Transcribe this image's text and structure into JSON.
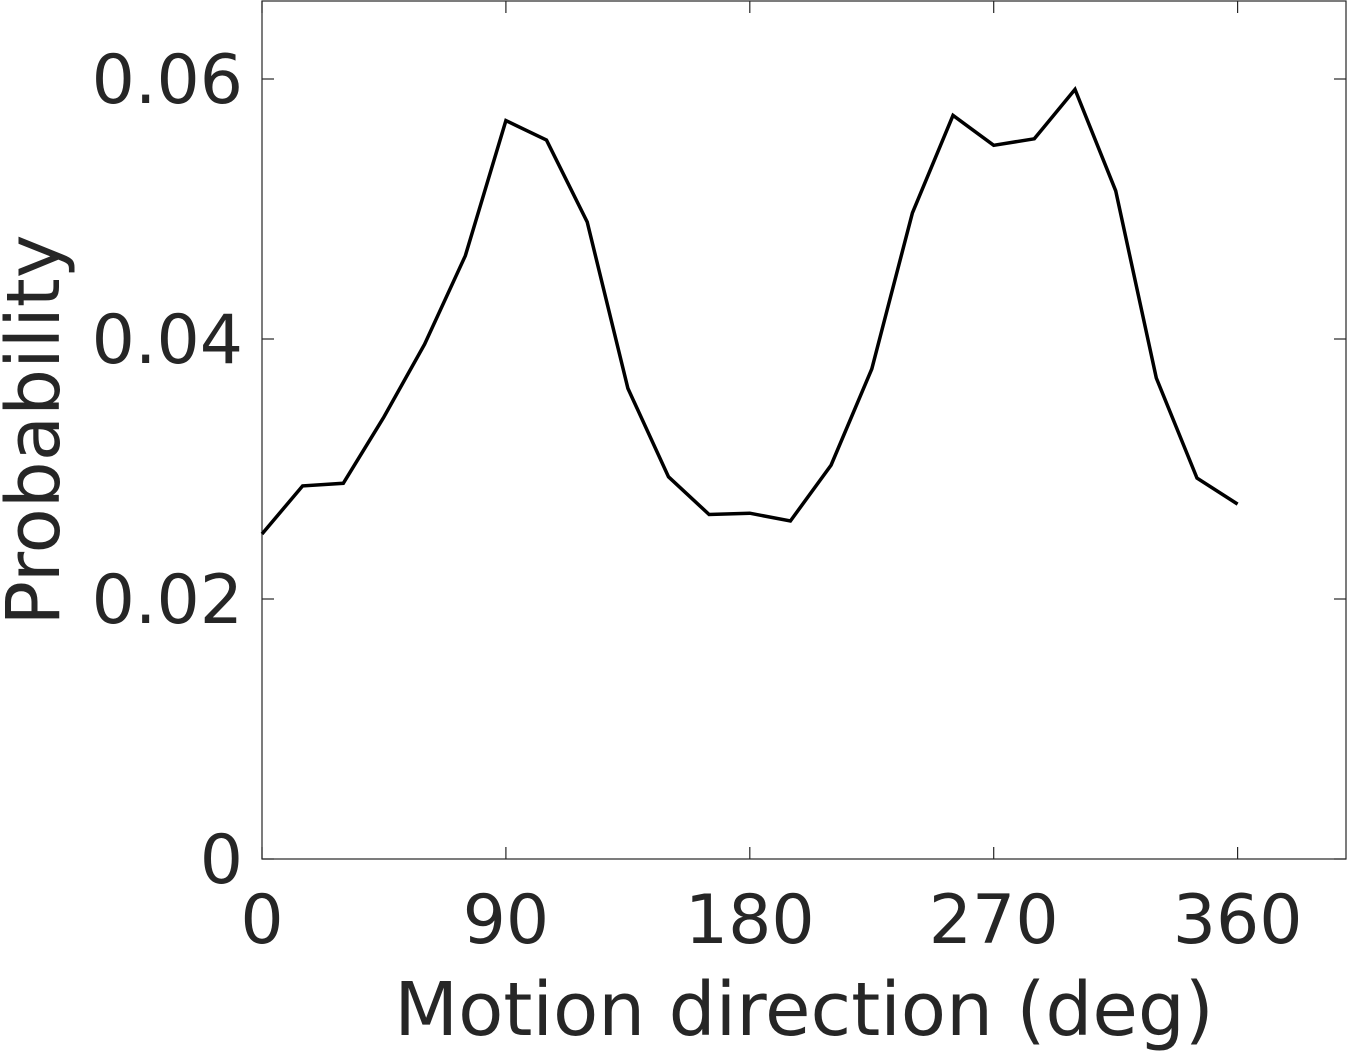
{
  "chart_data": {
    "type": "line",
    "title": "",
    "xlabel": "Motion direction (deg)",
    "ylabel": "Probability",
    "xlim": [
      0,
      400
    ],
    "ylim": [
      0,
      0.066
    ],
    "xticks": [
      0,
      90,
      180,
      270,
      360
    ],
    "xtick_labels": [
      "0",
      "90",
      "180",
      "270",
      "360"
    ],
    "yticks": [
      0,
      0.02,
      0.04,
      0.06
    ],
    "ytick_labels": [
      "0",
      "0.02",
      "0.04",
      "0.06"
    ],
    "grid": false,
    "box": true,
    "colors": {
      "line": "#000000",
      "text": "#262626",
      "axes": "#262626"
    },
    "series": [
      {
        "x": [
          0,
          15,
          30,
          45,
          60,
          75,
          90,
          105,
          120,
          135,
          150,
          165,
          180,
          195,
          210,
          225,
          240,
          255,
          270,
          285,
          300,
          315,
          330,
          345,
          360
        ],
        "values": [
          0.025,
          0.0287,
          0.0289,
          0.034,
          0.0396,
          0.0464,
          0.0568,
          0.0553,
          0.049,
          0.0362,
          0.0294,
          0.0265,
          0.0266,
          0.026,
          0.0303,
          0.0377,
          0.0497,
          0.0572,
          0.0549,
          0.0554,
          0.0592,
          0.0514,
          0.037,
          0.0293,
          0.0273
        ]
      }
    ]
  }
}
